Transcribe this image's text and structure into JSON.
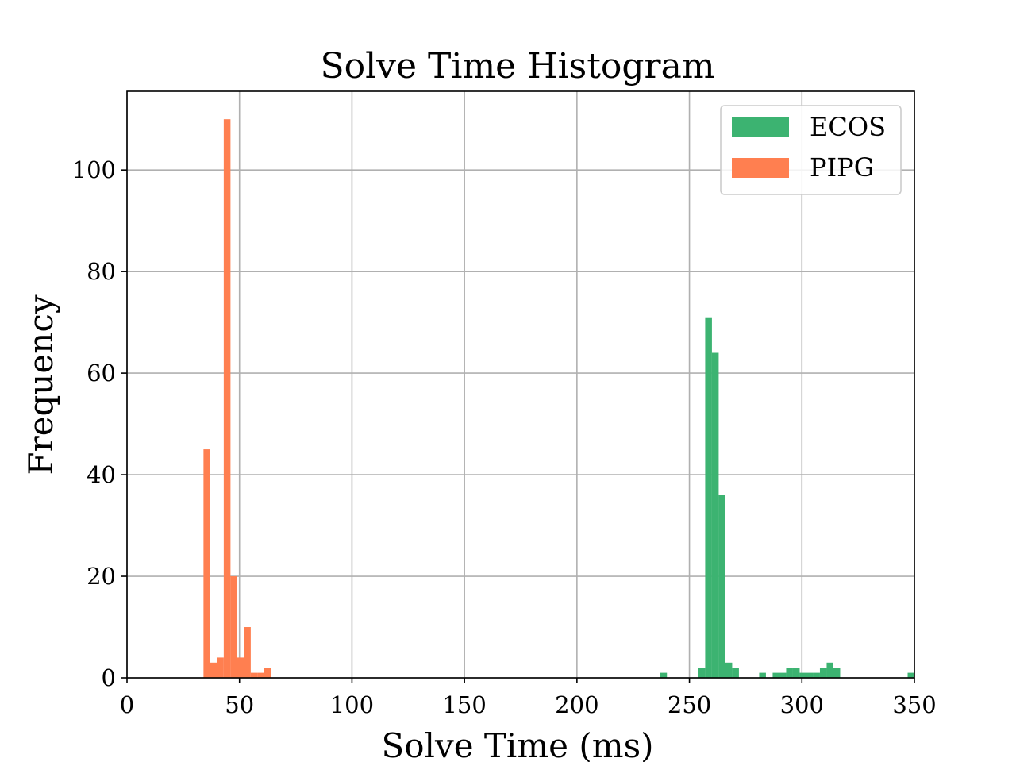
{
  "chart_data": {
    "type": "bar",
    "title": "Solve Time Histogram",
    "xlabel": "Solve Time (ms)",
    "ylabel": "Frequency",
    "xlim": [
      0,
      350
    ],
    "ylim": [
      0,
      115.5
    ],
    "xticks": [
      0,
      50,
      100,
      150,
      200,
      250,
      300,
      350
    ],
    "yticks": [
      0,
      20,
      40,
      60,
      80,
      100
    ],
    "grid": true,
    "legend_position": "upper-right",
    "series": [
      {
        "name": "ECOS",
        "color": "#3cb371",
        "bins": [
          {
            "x0": 237.0,
            "x1": 240.0,
            "value": 1
          },
          {
            "x0": 254.0,
            "x1": 257.0,
            "value": 2
          },
          {
            "x0": 257.0,
            "x1": 260.0,
            "value": 71
          },
          {
            "x0": 260.0,
            "x1": 263.0,
            "value": 64
          },
          {
            "x0": 263.0,
            "x1": 266.0,
            "value": 36
          },
          {
            "x0": 266.0,
            "x1": 269.0,
            "value": 3
          },
          {
            "x0": 269.0,
            "x1": 272.0,
            "value": 2
          },
          {
            "x0": 281.0,
            "x1": 284.0,
            "value": 1
          },
          {
            "x0": 287.0,
            "x1": 290.0,
            "value": 1
          },
          {
            "x0": 290.0,
            "x1": 293.0,
            "value": 1
          },
          {
            "x0": 293.0,
            "x1": 296.0,
            "value": 2
          },
          {
            "x0": 296.0,
            "x1": 299.0,
            "value": 2
          },
          {
            "x0": 299.0,
            "x1": 302.0,
            "value": 1
          },
          {
            "x0": 302.0,
            "x1": 305.0,
            "value": 1
          },
          {
            "x0": 305.0,
            "x1": 308.0,
            "value": 1
          },
          {
            "x0": 308.0,
            "x1": 311.0,
            "value": 2
          },
          {
            "x0": 311.0,
            "x1": 314.0,
            "value": 3
          },
          {
            "x0": 314.0,
            "x1": 317.0,
            "value": 2
          },
          {
            "x0": 347.0,
            "x1": 350.0,
            "value": 1
          }
        ]
      },
      {
        "name": "PIPG",
        "color": "#ff7f50",
        "bins": [
          {
            "x0": 34.0,
            "x1": 37.0,
            "value": 45
          },
          {
            "x0": 37.0,
            "x1": 40.0,
            "value": 3
          },
          {
            "x0": 40.0,
            "x1": 43.0,
            "value": 4
          },
          {
            "x0": 43.0,
            "x1": 46.0,
            "value": 110
          },
          {
            "x0": 46.0,
            "x1": 49.0,
            "value": 20
          },
          {
            "x0": 49.0,
            "x1": 52.0,
            "value": 4
          },
          {
            "x0": 52.0,
            "x1": 55.0,
            "value": 10
          },
          {
            "x0": 55.0,
            "x1": 58.0,
            "value": 1
          },
          {
            "x0": 58.0,
            "x1": 61.0,
            "value": 1
          },
          {
            "x0": 61.0,
            "x1": 64.0,
            "value": 2
          }
        ]
      }
    ]
  }
}
